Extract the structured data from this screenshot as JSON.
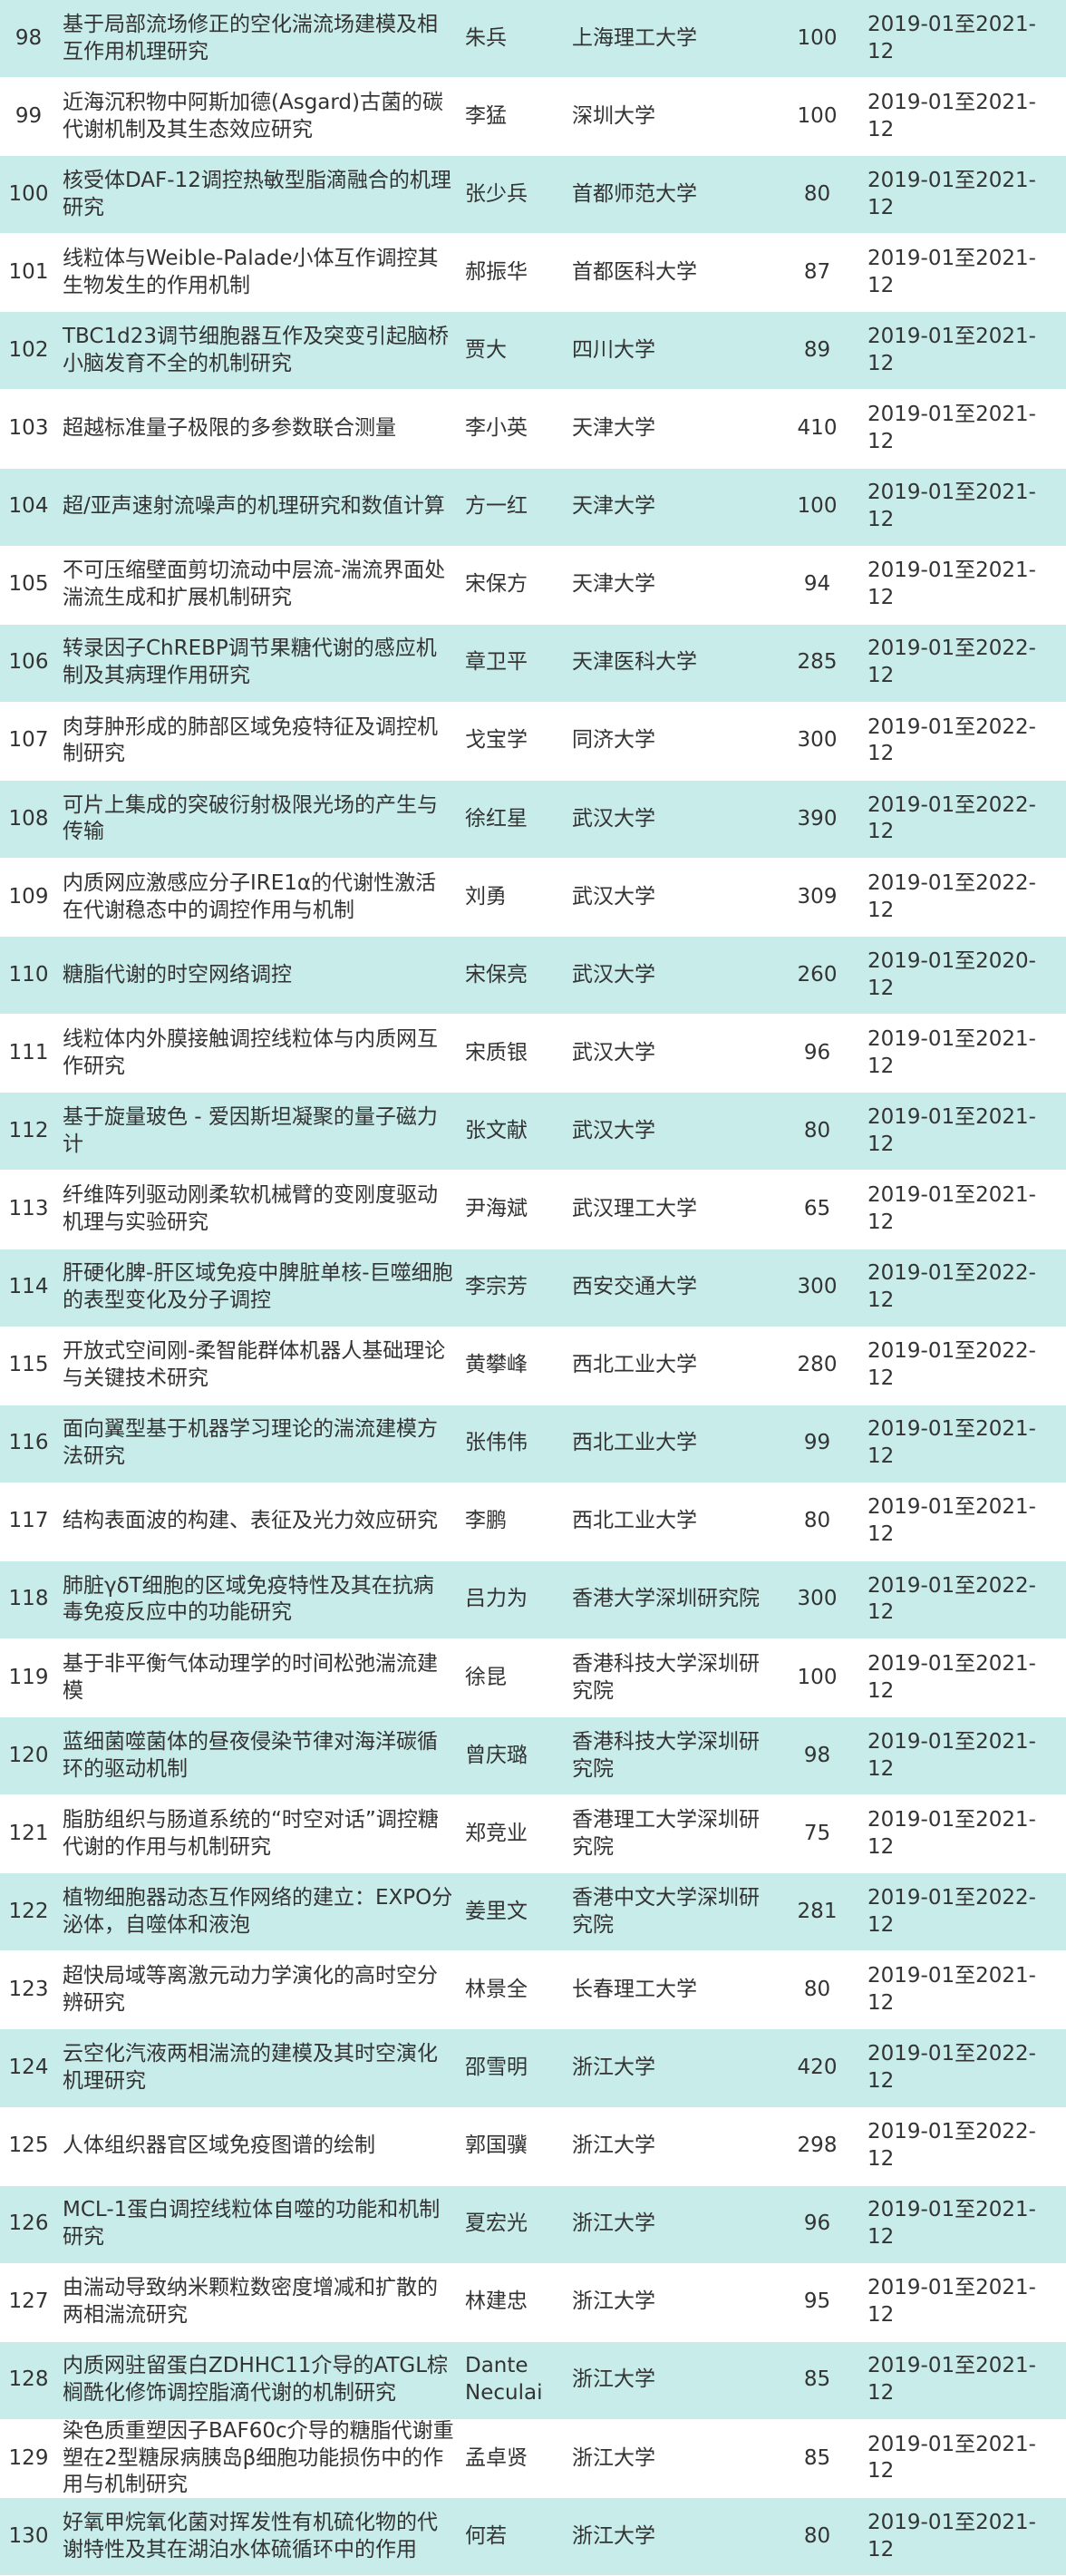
{
  "table": {
    "rows": [
      [
        "98",
        "基于局部流场修正的空化湍流场建模及相互作用机理研究",
        "朱兵",
        "上海理工大学",
        "100",
        "2019-01至2021-12"
      ],
      [
        "99",
        "近海沉积物中阿斯加德(Asgard)古菌的碳代谢机制及其生态效应研究",
        "李猛",
        "深圳大学",
        "100",
        "2019-01至2021-12"
      ],
      [
        "100",
        "核受体DAF-12调控热敏型脂滴融合的机理研究",
        "张少兵",
        "首都师范大学",
        "80",
        "2019-01至2021-12"
      ],
      [
        "101",
        "线粒体与Weible-Palade小体互作调控其生物发生的作用机制",
        "郝振华",
        "首都医科大学",
        "87",
        "2019-01至2021-12"
      ],
      [
        "102",
        "TBC1d23调节细胞器互作及突变引起脑桥小脑发育不全的机制研究",
        "贾大",
        "四川大学",
        "89",
        "2019-01至2021-12"
      ],
      [
        "103",
        "超越标准量子极限的多参数联合测量",
        "李小英",
        "天津大学",
        "410",
        "2019-01至2021-12"
      ],
      [
        "104",
        "超/亚声速射流噪声的机理研究和数值计算",
        "方一红",
        "天津大学",
        "100",
        "2019-01至2021-12"
      ],
      [
        "105",
        "不可压缩壁面剪切流动中层流-湍流界面处湍流生成和扩展机制研究",
        "宋保方",
        "天津大学",
        "94",
        "2019-01至2021-12"
      ],
      [
        "106",
        "转录因子ChREBP调节果糖代谢的感应机制及其病理作用研究",
        "章卫平",
        "天津医科大学",
        "285",
        "2019-01至2022-12"
      ],
      [
        "107",
        "肉芽肿形成的肺部区域免疫特征及调控机制研究",
        "戈宝学",
        "同济大学",
        "300",
        "2019-01至2022-12"
      ],
      [
        "108",
        "可片上集成的突破衍射极限光场的产生与传输",
        "徐红星",
        "武汉大学",
        "390",
        "2019-01至2022-12"
      ],
      [
        "109",
        "内质网应激感应分子IRE1α的代谢性激活在代谢稳态中的调控作用与机制",
        "刘勇",
        "武汉大学",
        "309",
        "2019-01至2022-12"
      ],
      [
        "110",
        "糖脂代谢的时空网络调控",
        "宋保亮",
        "武汉大学",
        "260",
        "2019-01至2020-12"
      ],
      [
        "111",
        "线粒体内外膜接触调控线粒体与内质网互作研究",
        "宋质银",
        "武汉大学",
        "96",
        "2019-01至2021-12"
      ],
      [
        "112",
        "基于旋量玻色 - 爱因斯坦凝聚的量子磁力计",
        "张文献",
        "武汉大学",
        "80",
        "2019-01至2021-12"
      ],
      [
        "113",
        "纤维阵列驱动刚柔软机械臂的变刚度驱动机理与实验研究",
        "尹海斌",
        "武汉理工大学",
        "65",
        "2019-01至2021-12"
      ],
      [
        "114",
        "肝硬化脾-肝区域免疫中脾脏单核-巨噬细胞的表型变化及分子调控",
        "李宗芳",
        "西安交通大学",
        "300",
        "2019-01至2022-12"
      ],
      [
        "115",
        "开放式空间刚-柔智能群体机器人基础理论与关键技术研究",
        "黄攀峰",
        "西北工业大学",
        "280",
        "2019-01至2022-12"
      ],
      [
        "116",
        "面向翼型基于机器学习理论的湍流建模方法研究",
        "张伟伟",
        "西北工业大学",
        "99",
        "2019-01至2021-12"
      ],
      [
        "117",
        "结构表面波的构建、表征及光力效应研究",
        "李鹏",
        "西北工业大学",
        "80",
        "2019-01至2021-12"
      ],
      [
        "118",
        "肺脏γδT细胞的区域免疫特性及其在抗病毒免疫反应中的功能研究",
        "吕力为",
        "香港大学深圳研究院",
        "300",
        "2019-01至2022-12"
      ],
      [
        "119",
        "基于非平衡气体动理学的时间松弛湍流建模",
        "徐昆",
        "香港科技大学深圳研究院",
        "100",
        "2019-01至2021-12"
      ],
      [
        "120",
        "蓝细菌噬菌体的昼夜侵染节律对海洋碳循环的驱动机制",
        "曾庆璐",
        "香港科技大学深圳研究院",
        "98",
        "2019-01至2021-12"
      ],
      [
        "121",
        "脂肪组织与肠道系统的“时空对话”调控糖代谢的作用与机制研究",
        "郑竞业",
        "香港理工大学深圳研究院",
        "75",
        "2019-01至2021-12"
      ],
      [
        "122",
        "植物细胞器动态互作网络的建立：EXPO分泌体，自噬体和液泡",
        "姜里文",
        "香港中文大学深圳研究院",
        "281",
        "2019-01至2022-12"
      ],
      [
        "123",
        "超快局域等离激元动力学演化的高时空分辨研究",
        "林景全",
        "长春理工大学",
        "80",
        "2019-01至2021-12"
      ],
      [
        "124",
        "云空化汽液两相湍流的建模及其时空演化机理研究",
        "邵雪明",
        "浙江大学",
        "420",
        "2019-01至2022-12"
      ],
      [
        "125",
        "人体组织器官区域免疫图谱的绘制",
        "郭国骥",
        "浙江大学",
        "298",
        "2019-01至2022-12"
      ],
      [
        "126",
        "MCL-1蛋白调控线粒体自噬的功能和机制研究",
        "夏宏光",
        "浙江大学",
        "96",
        "2019-01至2021-12"
      ],
      [
        "127",
        "由湍动导致纳米颗粒数密度增减和扩散的两相湍流研究",
        "林建忠",
        "浙江大学",
        "95",
        "2019-01至2021-12"
      ],
      [
        "128",
        "内质网驻留蛋白ZDHHC11介导的ATGL棕榈酰化修饰调控脂滴代谢的机制研究",
        "Dante Neculai",
        "浙江大学",
        "85",
        "2019-01至2021-12"
      ],
      [
        "129",
        "染色质重塑因子BAF60c介导的糖脂代谢重塑在2型糖尿病胰岛β细胞功能损伤中的作用与机制研究",
        "孟卓贤",
        "浙江大学",
        "85",
        "2019-01至2021-12"
      ],
      [
        "130",
        "好氧甲烷氧化菌对挥发性有机硫化物的代谢特性及其在湖泊水体硫循环中的作用",
        "何若",
        "浙江大学",
        "80",
        "2019-01至2021-12"
      ]
    ]
  }
}
